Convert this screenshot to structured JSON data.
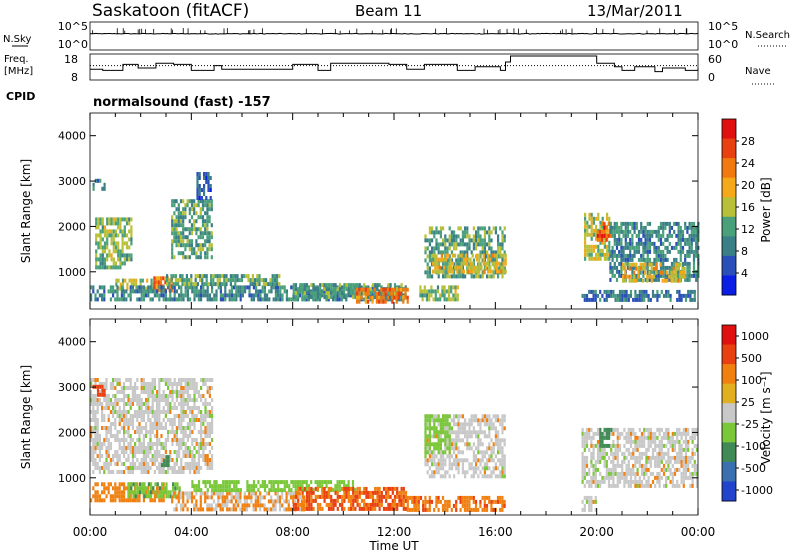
{
  "header": {
    "station": "Saskatoon (fitACF)",
    "beam": "Beam 11",
    "date": "13/Mar/2011"
  },
  "labels": {
    "nsky": "N.Sky",
    "nsearch": "N.Search",
    "freq_line1": "Freq.",
    "freq_line2": "[MHz]",
    "nave": "Nave",
    "cpid": "CPID",
    "cpid_value": "normalsound (fast) -157",
    "slant_range": "Slant Range [km]",
    "power_label": "Power [dB]",
    "velocity_label": "Velocity [m s⁻¹]",
    "x_axis": "Time UT"
  },
  "ticks": {
    "noise_left": [
      "10^5",
      "10^0"
    ],
    "noise_right": [
      "10^5",
      "10^0"
    ],
    "freq_left": [
      "18",
      "8"
    ],
    "freq_right": [
      "60",
      "0"
    ],
    "range": [
      "4000",
      "3000",
      "2000",
      "1000"
    ],
    "time": [
      "00:00",
      "04:00",
      "08:00",
      "12:00",
      "16:00",
      "20:00",
      "00:00"
    ],
    "power_scale": [
      "28",
      "24",
      "20",
      "16",
      "12",
      "8",
      "4"
    ],
    "velocity_scale": [
      "1000",
      "500",
      "100",
      "25",
      "-25",
      "-100",
      "-500",
      "-1000"
    ]
  },
  "colors": {
    "power": [
      "#0a1ee6",
      "#2a4fb8",
      "#3a7f86",
      "#4aa07a",
      "#b8c03a",
      "#f5a81a",
      "#f07a10",
      "#e84010",
      "#e01010"
    ],
    "velocity": [
      "#2244cc",
      "#3a6fb0",
      "#3f8a55",
      "#7ac83a",
      "#c8c8c8",
      "#e0b020",
      "#f08010",
      "#e84010",
      "#e01010"
    ]
  },
  "chart_data": [
    {
      "type": "line",
      "name": "noise",
      "x_range_hours": [
        0,
        24
      ],
      "y_scale": "log",
      "ylim": [
        1,
        100000
      ],
      "series": [
        {
          "name": "N.Sky",
          "style": "solid"
        },
        {
          "name": "N.Search",
          "style": "dotted"
        }
      ]
    },
    {
      "type": "line",
      "name": "frequency",
      "x_range_hours": [
        0,
        24
      ],
      "ylim": [
        8,
        18
      ],
      "ylim_right": [
        0,
        60
      ],
      "series": [
        {
          "name": "Freq.",
          "style": "solid",
          "x": [
            0,
            0.5,
            1.3,
            1.9,
            2.6,
            3.3,
            4.0,
            4.9,
            5.2,
            7.5,
            8.0,
            9.0,
            9.5,
            11.8,
            12.5,
            13.2,
            14.5,
            15.2,
            16.2,
            16.4,
            16.6,
            18.8,
            20.0,
            20.7,
            21.0,
            21.5,
            22.3,
            22.6,
            23.5,
            24
          ],
          "y": [
            12.5,
            12,
            14.5,
            13,
            15,
            14.5,
            12,
            14,
            12.5,
            12.5,
            14.5,
            12,
            15,
            14.5,
            12.5,
            14.5,
            12,
            13.5,
            12,
            15.5,
            18,
            18,
            15,
            13.5,
            12,
            13.5,
            11.5,
            13,
            12,
            13
          ]
        },
        {
          "name": "Nave",
          "style": "dotted",
          "value": 14
        }
      ]
    },
    {
      "type": "heatmap",
      "name": "power",
      "x_range_hours": [
        0,
        24
      ],
      "ylim": [
        180,
        4500
      ],
      "colorbar": {
        "label": "Power [dB]",
        "ticks": [
          28,
          24,
          20,
          16,
          12,
          8,
          4
        ]
      },
      "regions": [
        {
          "t0": 0.2,
          "t1": 1.6,
          "r0": 1100,
          "r1": 2200,
          "v": 14
        },
        {
          "t0": 0.1,
          "t1": 0.6,
          "r0": 2850,
          "r1": 3050,
          "v": 8
        },
        {
          "t0": 1.0,
          "t1": 2.5,
          "r0": 650,
          "r1": 850,
          "v": 16
        },
        {
          "t0": 2.5,
          "t1": 3.2,
          "r0": 600,
          "r1": 900,
          "v": 24
        },
        {
          "t0": 3.2,
          "t1": 4.8,
          "r0": 1300,
          "r1": 2600,
          "v": 12
        },
        {
          "t0": 4.2,
          "t1": 4.8,
          "r0": 2600,
          "r1": 3200,
          "v": 6
        },
        {
          "t0": 0.0,
          "t1": 12.5,
          "r0": 350,
          "r1": 700,
          "v": 10
        },
        {
          "t0": 3.0,
          "t1": 7.5,
          "r0": 750,
          "r1": 950,
          "v": 12
        },
        {
          "t0": 8.0,
          "t1": 12.5,
          "r0": 400,
          "r1": 750,
          "v": 12
        },
        {
          "t0": 10.5,
          "t1": 12.5,
          "r0": 350,
          "r1": 650,
          "v": 24
        },
        {
          "t0": 13.0,
          "t1": 14.5,
          "r0": 400,
          "r1": 700,
          "v": 14
        },
        {
          "t0": 13.2,
          "t1": 16.4,
          "r0": 900,
          "r1": 2000,
          "v": 12
        },
        {
          "t0": 13.5,
          "t1": 16.4,
          "r0": 1000,
          "r1": 1400,
          "v": 18
        },
        {
          "t0": 19.5,
          "t1": 20.5,
          "r0": 1300,
          "r1": 2300,
          "v": 16
        },
        {
          "t0": 20.0,
          "t1": 20.6,
          "r0": 1700,
          "r1": 2100,
          "v": 26
        },
        {
          "t0": 20.5,
          "t1": 24.0,
          "r0": 800,
          "r1": 2100,
          "v": 10
        },
        {
          "t0": 21.0,
          "t1": 23.5,
          "r0": 800,
          "r1": 1200,
          "v": 18
        },
        {
          "t0": 19.4,
          "t1": 23.9,
          "r0": 350,
          "r1": 600,
          "v": 8
        }
      ]
    },
    {
      "type": "heatmap",
      "name": "velocity",
      "x_range_hours": [
        0,
        24
      ],
      "ylim": [
        180,
        4500
      ],
      "colorbar": {
        "label": "Velocity [m s⁻¹]",
        "ticks": [
          1000,
          500,
          100,
          25,
          -25,
          -100,
          -500,
          -1000
        ]
      },
      "regions": [
        {
          "t0": 0.0,
          "t1": 4.8,
          "r0": 1100,
          "r1": 3200,
          "v": 0
        },
        {
          "t0": 0.1,
          "t1": 0.6,
          "r0": 2800,
          "r1": 3050,
          "v": -300
        },
        {
          "t0": 0.0,
          "t1": 3.0,
          "r0": 500,
          "r1": 900,
          "v": -60
        },
        {
          "t0": 1.5,
          "t1": 3.5,
          "r0": 600,
          "r1": 900,
          "v": 80
        },
        {
          "t0": 2.8,
          "t1": 3.2,
          "r0": 1300,
          "r1": 1500,
          "v": 300
        },
        {
          "t0": 3.2,
          "t1": 8.5,
          "r0": 300,
          "r1": 700,
          "v": -30
        },
        {
          "t0": 4.0,
          "t1": 10.5,
          "r0": 750,
          "r1": 950,
          "v": 60
        },
        {
          "t0": 8.0,
          "t1": 12.5,
          "r0": 300,
          "r1": 800,
          "v": -100
        },
        {
          "t0": 12.5,
          "t1": 16.4,
          "r0": 300,
          "r1": 600,
          "v": -80
        },
        {
          "t0": 13.2,
          "t1": 16.4,
          "r0": 1000,
          "r1": 2400,
          "v": 0
        },
        {
          "t0": 13.2,
          "t1": 14.2,
          "r0": 1600,
          "r1": 2400,
          "v": 60
        },
        {
          "t0": 19.4,
          "t1": 24.0,
          "r0": 800,
          "r1": 2100,
          "v": 0
        },
        {
          "t0": 20.1,
          "t1": 20.6,
          "r0": 1700,
          "r1": 2100,
          "v": 200
        },
        {
          "t0": 19.4,
          "t1": 20.0,
          "r0": 300,
          "r1": 600,
          "v": 0
        }
      ]
    }
  ]
}
